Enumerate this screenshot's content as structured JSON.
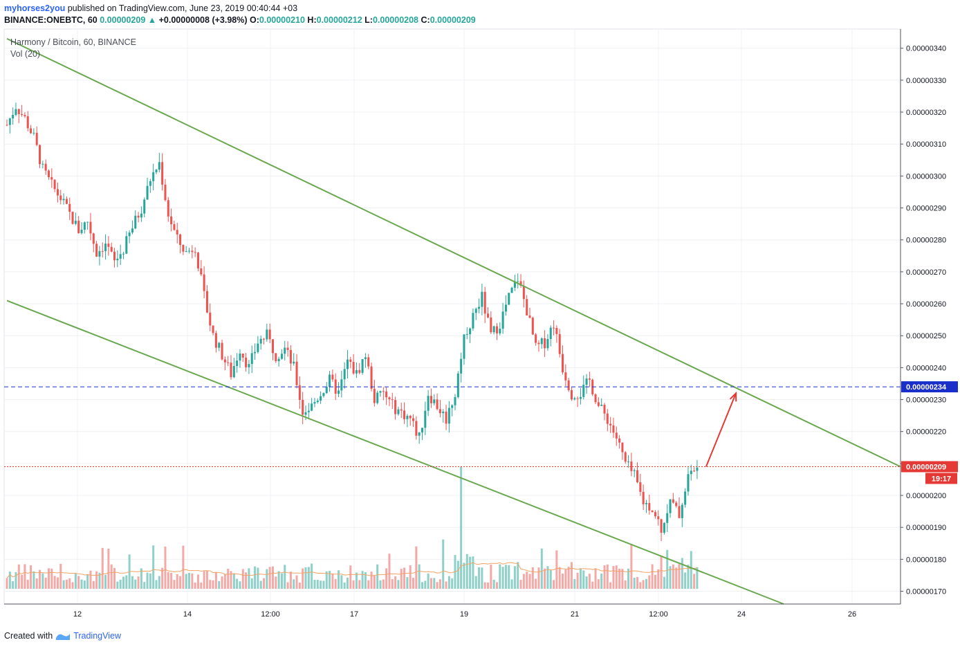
{
  "header": {
    "author": "myhorses2you",
    "published_text": "published on TradingView.com, June 23, 2019 00:40:44 +03",
    "symbol_line": "BINANCE:ONEBTC, 60",
    "last": "0.00000209",
    "change_arrow": "▲",
    "change": "+0.00000008 (+3.98%)",
    "o_label": "O:",
    "o": "0.00000210",
    "h_label": "H:",
    "h": "0.00000212",
    "l_label": "L:",
    "l": "0.00000208",
    "c_label": "C:",
    "c": "0.00000209"
  },
  "legend": {
    "series_title": "Harmony / Bitcoin, 60, BINANCE",
    "volume_title": "Vol (20)"
  },
  "footer": {
    "created_with": "Created with",
    "brand": "TradingView"
  },
  "colors": {
    "up": "#26a69a",
    "down": "#ef5350",
    "trendline": "#6aa84f",
    "level_line": "#1a2ec9",
    "price_line": "#e53935",
    "arrow": "#e53935",
    "volume_ma": "#f4a261"
  },
  "chart_data": {
    "type": "candlestick",
    "symbol": "ONEBTC",
    "timeframe_minutes": 60,
    "x_tick_labels": [
      "12",
      "14",
      "12:00",
      "17",
      "19",
      "21",
      "12:00",
      "24",
      "26"
    ],
    "y_tick_labels": [
      "0.00000340",
      "0.00000330",
      "0.00000320",
      "0.00000310",
      "0.00000300",
      "0.00000290",
      "0.00000280",
      "0.00000270",
      "0.00000260",
      "0.00000250",
      "0.00000240",
      "0.00000230",
      "0.00000220",
      "0.00000210",
      "0.00000200",
      "0.00000190",
      "0.00000180",
      "0.00000170"
    ],
    "y_ticks": [
      340,
      330,
      320,
      310,
      300,
      290,
      280,
      270,
      260,
      250,
      240,
      230,
      220,
      210,
      200,
      190,
      180,
      170
    ],
    "y_unit_note": "values in 1e-8 BTC (satoshi)",
    "ylim": [
      166,
      346
    ],
    "price_path": [
      [
        0,
        316
      ],
      [
        3,
        322
      ],
      [
        6,
        318
      ],
      [
        9,
        312
      ],
      [
        12,
        302
      ],
      [
        15,
        297
      ],
      [
        18,
        293
      ],
      [
        21,
        288
      ],
      [
        24,
        283
      ],
      [
        27,
        286
      ],
      [
        30,
        276
      ],
      [
        33,
        279
      ],
      [
        36,
        273
      ],
      [
        39,
        277
      ],
      [
        42,
        284
      ],
      [
        45,
        290
      ],
      [
        48,
        299
      ],
      [
        51,
        304
      ],
      [
        54,
        288
      ],
      [
        57,
        280
      ],
      [
        60,
        276
      ],
      [
        63,
        278
      ],
      [
        66,
        262
      ],
      [
        69,
        250
      ],
      [
        72,
        244
      ],
      [
        75,
        238
      ],
      [
        78,
        246
      ],
      [
        81,
        240
      ],
      [
        84,
        248
      ],
      [
        87,
        250
      ],
      [
        90,
        244
      ],
      [
        93,
        246
      ],
      [
        96,
        240
      ],
      [
        99,
        226
      ],
      [
        102,
        228
      ],
      [
        105,
        232
      ],
      [
        108,
        236
      ],
      [
        111,
        232
      ],
      [
        114,
        242
      ],
      [
        117,
        238
      ],
      [
        120,
        244
      ],
      [
        123,
        230
      ],
      [
        126,
        232
      ],
      [
        129,
        228
      ],
      [
        132,
        226
      ],
      [
        135,
        224
      ],
      [
        138,
        218
      ],
      [
        141,
        232
      ],
      [
        144,
        228
      ],
      [
        147,
        224
      ],
      [
        150,
        232
      ],
      [
        153,
        250
      ],
      [
        156,
        256
      ],
      [
        159,
        262
      ],
      [
        162,
        250
      ],
      [
        165,
        254
      ],
      [
        168,
        262
      ],
      [
        171,
        268
      ],
      [
        174,
        258
      ],
      [
        177,
        246
      ],
      [
        180,
        248
      ],
      [
        183,
        254
      ],
      [
        186,
        240
      ],
      [
        189,
        232
      ],
      [
        192,
        232
      ],
      [
        195,
        236
      ],
      [
        198,
        228
      ],
      [
        201,
        224
      ],
      [
        204,
        218
      ],
      [
        207,
        210
      ],
      [
        210,
        206
      ],
      [
        213,
        198
      ],
      [
        216,
        196
      ],
      [
        219,
        190
      ],
      [
        222,
        198
      ],
      [
        225,
        194
      ],
      [
        228,
        206
      ],
      [
        231,
        209
      ]
    ],
    "levels": [
      {
        "label": "0.00000234",
        "value": 234,
        "style": "dashed",
        "color": "#1a2ec9"
      },
      {
        "label": "0.00000209",
        "value": 209,
        "style": "dotted",
        "color": "#e53935",
        "countdown": "19:17"
      }
    ],
    "trendlines": [
      {
        "name": "upper",
        "points": [
          [
            0,
            343
          ],
          [
            300,
            209
          ]
        ]
      },
      {
        "name": "lower",
        "points": [
          [
            0,
            261
          ],
          [
            260,
            166
          ]
        ]
      }
    ],
    "projection_arrow": {
      "from": [
        234,
        209
      ],
      "to": [
        244,
        232
      ]
    },
    "volume_indicator": {
      "name": "Vol (20)"
    }
  }
}
